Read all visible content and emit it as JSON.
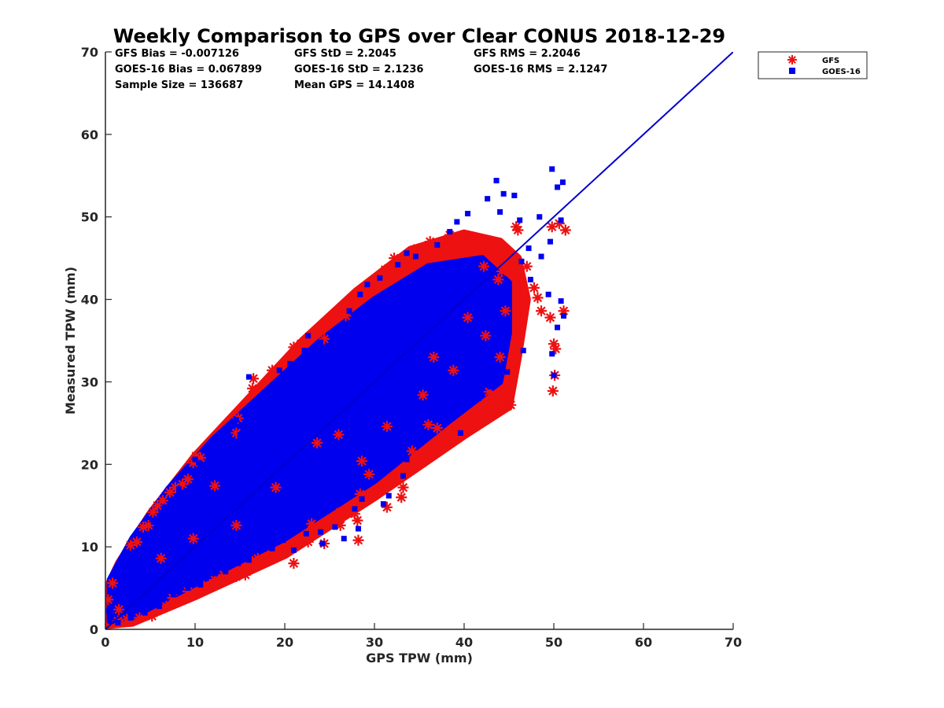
{
  "chart_data": {
    "type": "scatter",
    "title": "Weekly Comparison to GPS over Clear CONUS 2018-12-29",
    "xlabel": "GPS TPW (mm)",
    "ylabel": "Measured TPW (mm)",
    "xlim": [
      0,
      70
    ],
    "ylim": [
      0,
      70
    ],
    "xticks": [
      "0",
      "10",
      "20",
      "30",
      "40",
      "50",
      "60",
      "70"
    ],
    "yticks": [
      "0",
      "10",
      "20",
      "30",
      "40",
      "50",
      "60",
      "70"
    ],
    "grid": false,
    "legend_position": "outside-top-right",
    "stats": [
      [
        "GFS Bias = -0.007126",
        "GFS StD = 2.2045",
        "GFS RMS = 2.2046"
      ],
      [
        "GOES-16 Bias = 0.067899",
        "GOES-16 StD = 2.1236",
        "GOES-16 RMS = 2.1247"
      ],
      [
        "Sample Size = 136687",
        "Mean GPS = 14.1408",
        ""
      ]
    ],
    "reference_line": {
      "x": [
        0,
        70
      ],
      "y": [
        0,
        70
      ],
      "color": "#0000cc"
    },
    "series": [
      {
        "name": "GFS",
        "marker": "asterisk",
        "color": "#ee1111",
        "points": [
          [
            0.3,
            3.6
          ],
          [
            0.8,
            5.6
          ],
          [
            1.5,
            2.4
          ],
          [
            2.8,
            10.2
          ],
          [
            3.5,
            10.6
          ],
          [
            4.2,
            12.4
          ],
          [
            4.8,
            12.6
          ],
          [
            5.3,
            14.2
          ],
          [
            5.8,
            15.0
          ],
          [
            6.4,
            15.6
          ],
          [
            7.2,
            16.6
          ],
          [
            7.8,
            17.2
          ],
          [
            8.6,
            17.6
          ],
          [
            9.2,
            18.2
          ],
          [
            9.8,
            20.2
          ],
          [
            10.1,
            21.0
          ],
          [
            10.6,
            20.8
          ],
          [
            12.2,
            17.4
          ],
          [
            14.8,
            25.6
          ],
          [
            14.6,
            23.8
          ],
          [
            16.5,
            30.4
          ],
          [
            16.4,
            29.2
          ],
          [
            18.6,
            31.4
          ],
          [
            21.0,
            34.2
          ],
          [
            21.8,
            34.6
          ],
          [
            24.4,
            35.2
          ],
          [
            26.8,
            38.0
          ],
          [
            28.8,
            40.4
          ],
          [
            29.8,
            41.6
          ],
          [
            31.2,
            43.6
          ],
          [
            32.2,
            45.0
          ],
          [
            34.4,
            46.0
          ],
          [
            36.2,
            47.0
          ],
          [
            38.4,
            47.8
          ],
          [
            40.6,
            47.4
          ],
          [
            42.2,
            44.0
          ],
          [
            43.8,
            42.4
          ],
          [
            45.8,
            48.8
          ],
          [
            46.0,
            48.4
          ],
          [
            47.0,
            44.0
          ],
          [
            47.8,
            41.4
          ],
          [
            48.2,
            40.2
          ],
          [
            48.6,
            38.6
          ],
          [
            49.6,
            37.8
          ],
          [
            50.0,
            34.6
          ],
          [
            50.2,
            34.0
          ],
          [
            50.1,
            30.8
          ],
          [
            49.9,
            28.9
          ],
          [
            51.1,
            38.6
          ],
          [
            51.3,
            48.4
          ],
          [
            49.8,
            48.8
          ],
          [
            50.6,
            49.2
          ],
          [
            45.2,
            27.2
          ],
          [
            44.0,
            33.0
          ],
          [
            42.8,
            28.8
          ],
          [
            41.6,
            26.2
          ],
          [
            40.8,
            25.6
          ],
          [
            40.1,
            23.8
          ],
          [
            37.0,
            24.4
          ],
          [
            36.0,
            24.8
          ],
          [
            36.8,
            22.2
          ],
          [
            34.2,
            21.6
          ],
          [
            33.2,
            17.2
          ],
          [
            33.0,
            16.0
          ],
          [
            31.4,
            14.8
          ],
          [
            29.4,
            18.8
          ],
          [
            28.4,
            16.4
          ],
          [
            27.8,
            14.0
          ],
          [
            28.1,
            13.2
          ],
          [
            28.2,
            10.8
          ],
          [
            26.2,
            12.6
          ],
          [
            26.2,
            14.2
          ],
          [
            24.4,
            10.4
          ],
          [
            23.0,
            12.8
          ],
          [
            22.6,
            10.6
          ],
          [
            21.0,
            8.0
          ],
          [
            20.2,
            9.4
          ],
          [
            18.8,
            8.8
          ],
          [
            17.0,
            8.6
          ],
          [
            16.4,
            8.2
          ],
          [
            15.6,
            6.6
          ],
          [
            14.6,
            6.4
          ],
          [
            13.2,
            6.6
          ],
          [
            12.2,
            6.0
          ],
          [
            11.0,
            5.2
          ],
          [
            9.2,
            4.6
          ],
          [
            7.5,
            3.8
          ],
          [
            6.8,
            2.8
          ],
          [
            5.2,
            1.6
          ],
          [
            3.8,
            1.4
          ],
          [
            2.4,
            1.2
          ],
          [
            1.4,
            1.0
          ],
          [
            19.0,
            17.2
          ],
          [
            23.6,
            22.6
          ],
          [
            26.0,
            23.6
          ],
          [
            31.4,
            24.6
          ],
          [
            35.4,
            28.4
          ],
          [
            38.8,
            31.4
          ],
          [
            42.4,
            35.6
          ],
          [
            44.6,
            38.6
          ],
          [
            46.2,
            39.8
          ],
          [
            14.6,
            12.6
          ],
          [
            9.8,
            11.0
          ],
          [
            6.2,
            8.6
          ],
          [
            28.6,
            20.4
          ],
          [
            36.6,
            33.0
          ],
          [
            40.4,
            37.8
          ],
          [
            44.2,
            43.4
          ]
        ]
      },
      {
        "name": "GOES-16",
        "marker": "square",
        "color": "#0000ee",
        "points": [
          [
            0.4,
            2.2
          ],
          [
            1.0,
            4.4
          ],
          [
            2.0,
            6.0
          ],
          [
            3.0,
            8.2
          ],
          [
            4.6,
            11.0
          ],
          [
            5.4,
            13.0
          ],
          [
            6.6,
            14.8
          ],
          [
            8.2,
            17.0
          ],
          [
            9.6,
            19.0
          ],
          [
            10.4,
            20.2
          ],
          [
            12.0,
            21.4
          ],
          [
            13.6,
            21.8
          ],
          [
            15.0,
            23.6
          ],
          [
            16.6,
            26.2
          ],
          [
            18.2,
            28.8
          ],
          [
            20.6,
            32.2
          ],
          [
            22.2,
            33.8
          ],
          [
            24.0,
            34.8
          ],
          [
            26.0,
            36.4
          ],
          [
            27.2,
            38.6
          ],
          [
            28.4,
            40.6
          ],
          [
            30.6,
            42.6
          ],
          [
            32.6,
            44.2
          ],
          [
            34.6,
            45.2
          ],
          [
            37.0,
            46.6
          ],
          [
            38.4,
            48.2
          ],
          [
            40.4,
            50.4
          ],
          [
            42.6,
            52.2
          ],
          [
            43.6,
            54.4
          ],
          [
            44.4,
            52.8
          ],
          [
            45.6,
            52.6
          ],
          [
            46.2,
            49.6
          ],
          [
            48.4,
            50.0
          ],
          [
            49.8,
            55.8
          ],
          [
            50.4,
            53.6
          ],
          [
            51.0,
            54.2
          ],
          [
            50.8,
            49.6
          ],
          [
            49.6,
            47.0
          ],
          [
            48.6,
            45.2
          ],
          [
            47.4,
            42.4
          ],
          [
            49.4,
            40.6
          ],
          [
            50.8,
            39.8
          ],
          [
            51.1,
            38.0
          ],
          [
            50.4,
            36.6
          ],
          [
            49.8,
            33.4
          ],
          [
            50.0,
            30.8
          ],
          [
            46.6,
            33.8
          ],
          [
            44.8,
            31.2
          ],
          [
            43.0,
            29.4
          ],
          [
            41.6,
            28.0
          ],
          [
            39.6,
            23.8
          ],
          [
            38.0,
            25.6
          ],
          [
            35.6,
            24.0
          ],
          [
            33.6,
            20.6
          ],
          [
            33.2,
            18.6
          ],
          [
            31.6,
            16.2
          ],
          [
            31.0,
            15.2
          ],
          [
            29.6,
            17.8
          ],
          [
            28.6,
            15.8
          ],
          [
            27.8,
            14.6
          ],
          [
            28.2,
            12.2
          ],
          [
            26.6,
            11.0
          ],
          [
            25.6,
            12.4
          ],
          [
            24.0,
            11.8
          ],
          [
            24.2,
            10.4
          ],
          [
            22.4,
            11.6
          ],
          [
            21.0,
            9.6
          ],
          [
            19.8,
            10.8
          ],
          [
            18.6,
            9.8
          ],
          [
            17.2,
            9.6
          ],
          [
            16.0,
            8.4
          ],
          [
            14.8,
            8.0
          ],
          [
            13.4,
            7.0
          ],
          [
            12.0,
            6.8
          ],
          [
            10.6,
            5.4
          ],
          [
            9.2,
            5.0
          ],
          [
            7.6,
            4.2
          ],
          [
            6.0,
            2.8
          ],
          [
            4.4,
            2.0
          ],
          [
            2.8,
            1.4
          ],
          [
            1.4,
            0.8
          ],
          [
            10.0,
            20.6
          ],
          [
            14.6,
            25.4
          ],
          [
            16.0,
            30.6
          ],
          [
            19.4,
            31.4
          ],
          [
            22.6,
            35.6
          ],
          [
            29.2,
            41.8
          ],
          [
            33.6,
            45.6
          ],
          [
            39.2,
            49.4
          ],
          [
            44.0,
            50.6
          ],
          [
            46.4,
            44.6
          ],
          [
            47.2,
            46.2
          ],
          [
            30.4,
            36.0
          ],
          [
            18.6,
            22.0
          ],
          [
            25.4,
            30.0
          ],
          [
            36.0,
            39.0
          ],
          [
            41.0,
            44.0
          ],
          [
            20.0,
            17.6
          ],
          [
            12.4,
            15.6
          ],
          [
            8.4,
            10.2
          ]
        ]
      }
    ]
  }
}
